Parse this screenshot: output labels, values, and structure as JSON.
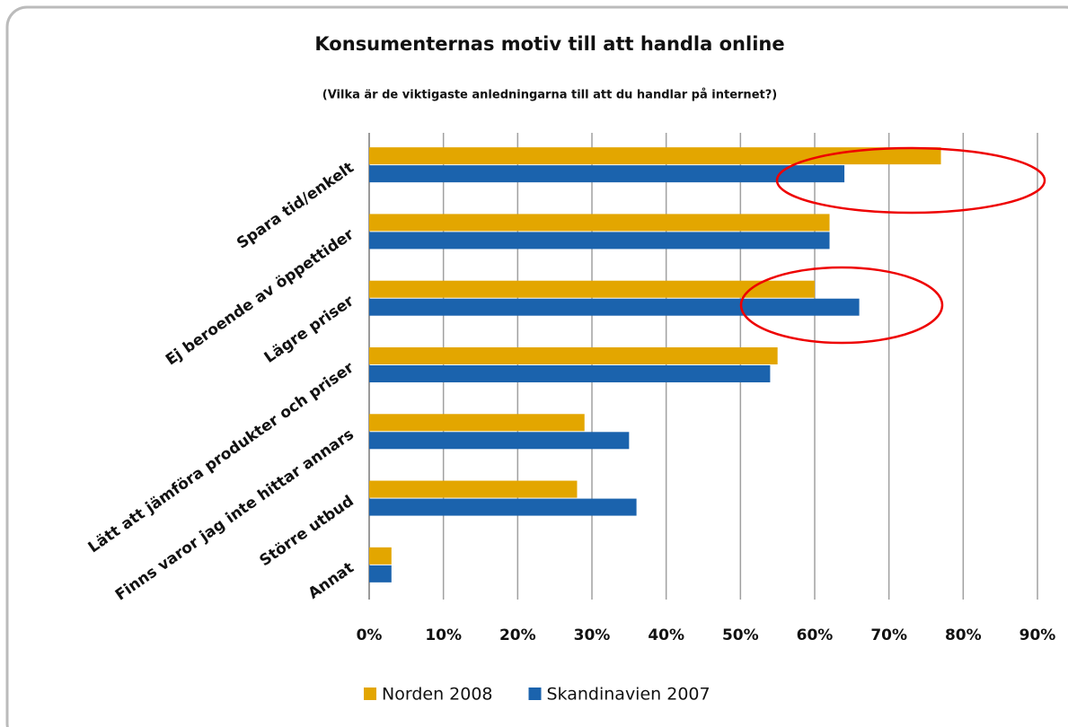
{
  "chart_data": {
    "type": "bar",
    "orientation": "horizontal",
    "title": "Konsumenternas motiv till att handla online",
    "subtitle": "(Vilka är de viktigaste anledningarna till att du handlar på internet?)",
    "categories": [
      "Spara tid/enkelt",
      "Ej beroende av öppettider",
      "Lägre priser",
      "Lätt att jämföra produkter och priser",
      "Finns varor jag inte hittar annars",
      "Större utbud",
      "Annat"
    ],
    "series": [
      {
        "name": "Norden 2008",
        "color": "#e3a600",
        "values": [
          77,
          62,
          60,
          55,
          29,
          28,
          3
        ]
      },
      {
        "name": "Skandinavien 2007",
        "color": "#1b63ad",
        "values": [
          64,
          62,
          66,
          54,
          35,
          36,
          3
        ]
      }
    ],
    "xlim": [
      0,
      90
    ],
    "xticks": [
      {
        "value": 0,
        "label": "0%"
      },
      {
        "value": 10,
        "label": "10%"
      },
      {
        "value": 20,
        "label": "20%"
      },
      {
        "value": 30,
        "label": "30%"
      },
      {
        "value": 40,
        "label": "40%"
      },
      {
        "value": 50,
        "label": "50%"
      },
      {
        "value": 60,
        "label": "60%"
      },
      {
        "value": 70,
        "label": "70%"
      },
      {
        "value": 80,
        "label": "80%"
      },
      {
        "value": 90,
        "label": "90%"
      }
    ],
    "grid": true,
    "legend": "bottom"
  }
}
